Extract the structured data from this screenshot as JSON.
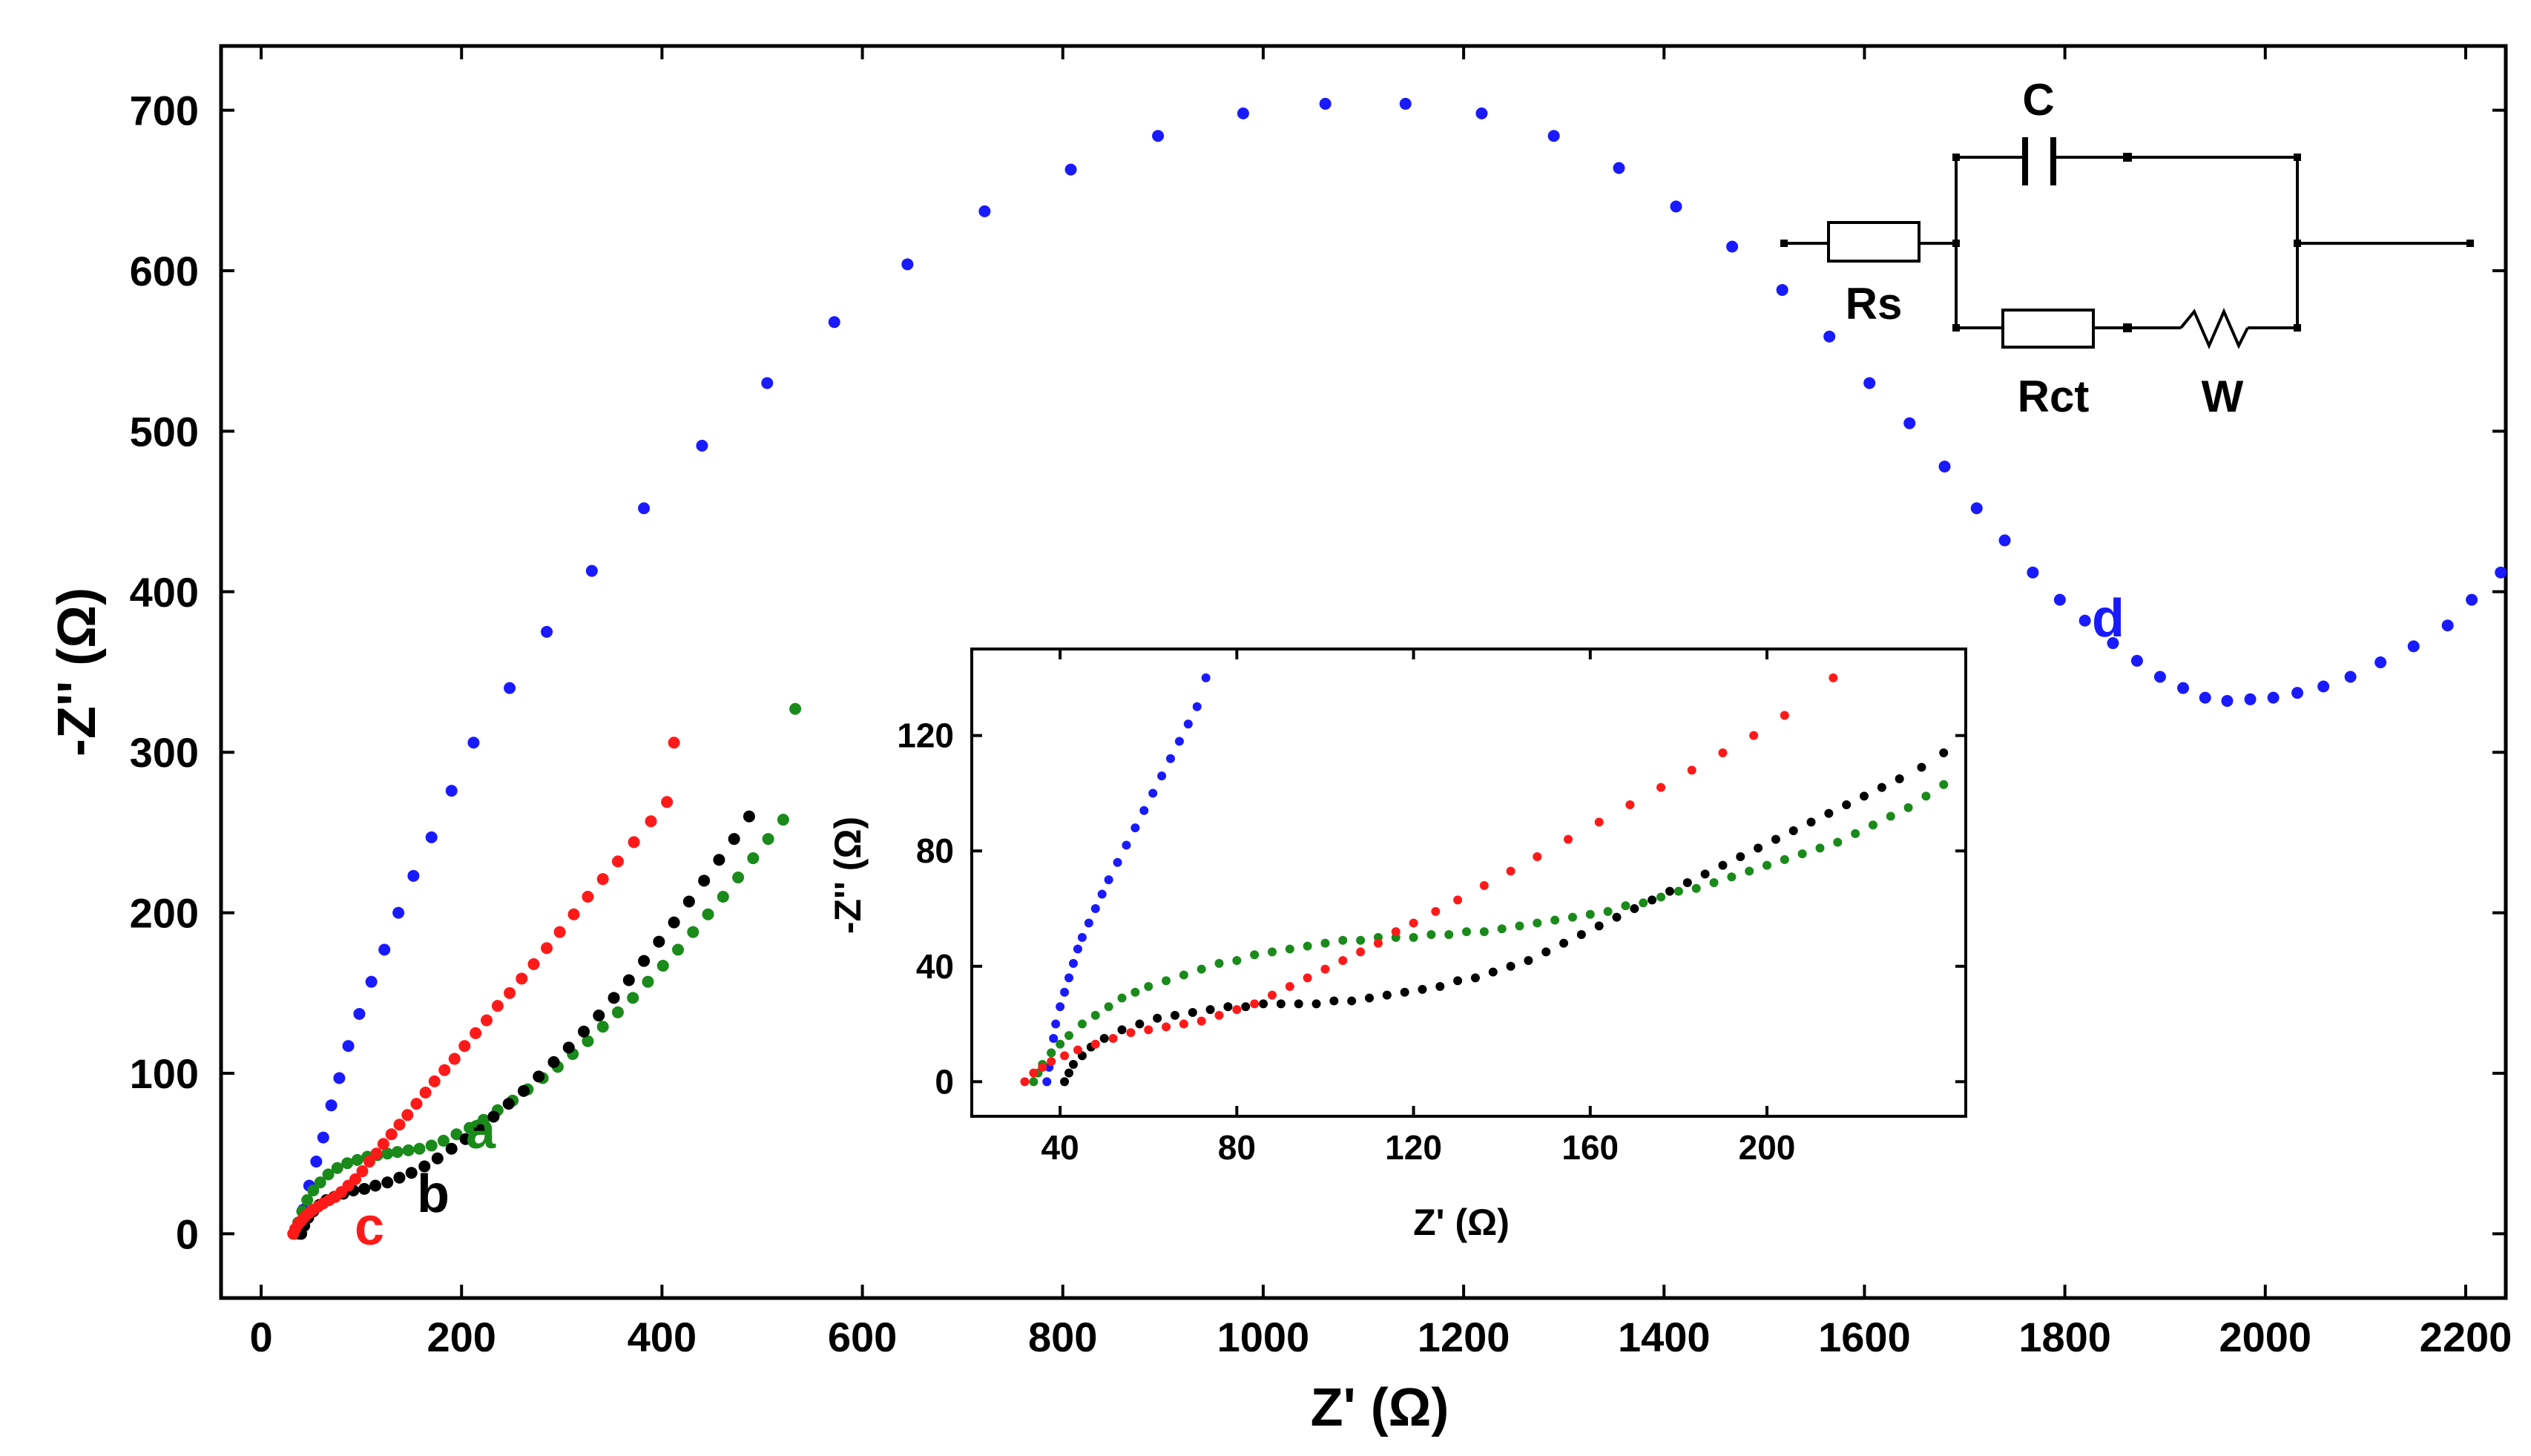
{
  "chart_data": {
    "type": "scatter",
    "title": "",
    "xlabel": "Z' (Ω)",
    "ylabel": "-Z'' (Ω)",
    "xlim": [
      -40,
      2240
    ],
    "ylim": [
      -40,
      740
    ],
    "xticks": [
      0,
      200,
      400,
      600,
      800,
      1000,
      1200,
      1400,
      1600,
      1800,
      2000,
      2200
    ],
    "yticks": [
      0,
      100,
      200,
      300,
      400,
      500,
      600,
      700
    ],
    "grid": false,
    "series": [
      {
        "name": "d",
        "color": "#1a1aff",
        "x": [
          38,
          42,
          48,
          55,
          62,
          70,
          78,
          87,
          98,
          110,
          123,
          137,
          152,
          170,
          190,
          212,
          248,
          285,
          330,
          382,
          440,
          505,
          572,
          645,
          722,
          808,
          895,
          980,
          1062,
          1142,
          1218,
          1290,
          1355,
          1412,
          1468,
          1518,
          1565,
          1605,
          1645,
          1680,
          1712,
          1740,
          1768,
          1795,
          1820,
          1848,
          1872,
          1895,
          1918,
          1940,
          1962,
          1985,
          2008,
          2032,
          2058,
          2085,
          2115,
          2148,
          2182,
          2206,
          2235
        ],
        "y": [
          0,
          15,
          30,
          45,
          60,
          80,
          97,
          117,
          137,
          157,
          177,
          200,
          223,
          247,
          276,
          306,
          340,
          375,
          413,
          452,
          491,
          530,
          568,
          604,
          637,
          663,
          684,
          698,
          704,
          704,
          698,
          684,
          664,
          640,
          615,
          588,
          559,
          530,
          505,
          478,
          452,
          432,
          412,
          395,
          382,
          368,
          357,
          347,
          340,
          334,
          332,
          333,
          334,
          337,
          341,
          347,
          356,
          366,
          379,
          395,
          412
        ]
      },
      {
        "name": "c",
        "color": "#ff1a1a",
        "x": [
          32,
          34,
          37,
          40,
          44,
          48,
          52,
          57,
          62,
          68,
          74,
          80,
          87,
          94,
          101,
          108,
          115,
          122,
          130,
          138,
          146,
          155,
          164,
          173,
          183,
          193,
          203,
          214,
          225,
          236,
          248,
          260,
          272,
          285,
          298,
          312,
          326,
          341,
          356,
          372,
          389,
          405,
          412
        ],
        "y": [
          0,
          3,
          6,
          8,
          11,
          13,
          15,
          17,
          19,
          21,
          23,
          26,
          30,
          34,
          39,
          45,
          50,
          56,
          62,
          68,
          74,
          81,
          88,
          95,
          102,
          109,
          117,
          125,
          133,
          142,
          150,
          159,
          168,
          178,
          188,
          199,
          210,
          221,
          232,
          244,
          257,
          269,
          306
        ]
      },
      {
        "name": "b",
        "color": "#000000",
        "x": [
          40,
          43,
          47,
          52,
          58,
          65,
          73,
          82,
          92,
          103,
          114,
          126,
          138,
          150,
          163,
          176,
          190,
          204,
          218,
          232,
          247,
          262,
          277,
          292,
          307,
          322,
          337,
          352,
          367,
          382,
          397,
          412,
          427,
          442,
          457,
          472,
          487
        ],
        "y": [
          0,
          5,
          10,
          14,
          18,
          21,
          23,
          25,
          27,
          28,
          30,
          32,
          35,
          38,
          42,
          47,
          53,
          59,
          66,
          73,
          81,
          89,
          98,
          107,
          116,
          126,
          136,
          147,
          158,
          170,
          182,
          194,
          207,
          220,
          233,
          246,
          260
        ]
      },
      {
        "name": "a",
        "color": "#1a8a1a",
        "x": [
          34,
          37,
          41,
          46,
          52,
          59,
          67,
          76,
          86,
          96,
          106,
          116,
          126,
          136,
          147,
          158,
          170,
          182,
          195,
          208,
          222,
          236,
          251,
          266,
          281,
          296,
          311,
          326,
          341,
          356,
          371,
          386,
          401,
          416,
          431,
          446,
          461,
          476,
          491,
          506,
          521,
          533
        ],
        "y": [
          0,
          7,
          14,
          21,
          27,
          32,
          37,
          41,
          44,
          46,
          48,
          49,
          50,
          51,
          52,
          53,
          55,
          58,
          62,
          66,
          71,
          77,
          83,
          90,
          97,
          104,
          112,
          120,
          129,
          138,
          147,
          157,
          167,
          177,
          188,
          199,
          210,
          222,
          234,
          246,
          258,
          327
        ]
      }
    ],
    "annotations": [
      {
        "text": "d",
        "series": "d"
      },
      {
        "text": "a",
        "series": "a"
      },
      {
        "text": "b",
        "series": "b"
      },
      {
        "text": "c",
        "series": "c"
      }
    ],
    "inset": {
      "xlabel": "Z' (Ω)",
      "ylabel": "-Z'' (Ω)",
      "xlim": [
        20,
        245
      ],
      "ylim": [
        -12,
        150
      ],
      "xticks": [
        40,
        80,
        120,
        160,
        200
      ],
      "yticks": [
        0,
        40,
        80,
        120
      ],
      "series": [
        {
          "name": "d",
          "color": "#1a1aff",
          "x": [
            37,
            37.5,
            38,
            38.5,
            39,
            40,
            41,
            42,
            43,
            44,
            45,
            46.5,
            48,
            49.5,
            51,
            53,
            55,
            57,
            59,
            61,
            63,
            65,
            67,
            69,
            71,
            73
          ],
          "y": [
            0,
            5,
            10,
            15,
            20,
            26,
            31,
            36,
            41,
            46,
            50,
            55,
            60,
            65,
            70,
            76,
            82,
            88,
            94,
            100,
            106,
            112,
            118,
            124,
            130,
            140
          ]
        },
        {
          "name": "c",
          "color": "#ff1a1a",
          "x": [
            32,
            34,
            36,
            38,
            41,
            44,
            48,
            52,
            56,
            60,
            64,
            68,
            72,
            76,
            80,
            84,
            88,
            92,
            96,
            100,
            104,
            108,
            112,
            116,
            120,
            125,
            130,
            136,
            142,
            148,
            155,
            162,
            169,
            176,
            183,
            190,
            197,
            204,
            215
          ],
          "y": [
            0,
            3,
            5,
            7,
            9,
            11,
            13,
            15,
            17,
            18,
            19,
            20,
            21,
            23,
            25,
            27,
            30,
            33,
            36,
            39,
            42,
            45,
            48,
            52,
            55,
            59,
            63,
            68,
            73,
            78,
            84,
            90,
            96,
            102,
            108,
            114,
            120,
            127,
            140
          ]
        },
        {
          "name": "b",
          "color": "#000000",
          "x": [
            41,
            42,
            43,
            45,
            47,
            50,
            54,
            58,
            62,
            66,
            70,
            74,
            78,
            82,
            86,
            90,
            94,
            98,
            102,
            106,
            110,
            114,
            118,
            122,
            126,
            130,
            134,
            138,
            142,
            146,
            150,
            154,
            158,
            162,
            166,
            170,
            174,
            178,
            182,
            186,
            190,
            194,
            198,
            202,
            206,
            210,
            214,
            218,
            222,
            226,
            230,
            235,
            240
          ],
          "y": [
            0,
            3,
            6,
            9,
            12,
            15,
            18,
            20,
            22,
            23,
            24,
            25,
            26,
            26,
            27,
            27,
            27,
            27,
            28,
            28,
            29,
            30,
            31,
            32,
            33,
            35,
            36,
            38,
            40,
            42,
            45,
            48,
            51,
            54,
            57,
            60,
            63,
            66,
            69,
            72,
            75,
            78,
            81,
            84,
            87,
            90,
            93,
            96,
            99,
            102,
            105,
            109,
            114
          ]
        },
        {
          "name": "a",
          "color": "#1a8a1a",
          "x": [
            34,
            35,
            36,
            38,
            40,
            42,
            45,
            48,
            51,
            54,
            57,
            60,
            64,
            68,
            72,
            76,
            80,
            84,
            88,
            92,
            96,
            100,
            104,
            108,
            112,
            116,
            120,
            124,
            128,
            132,
            136,
            140,
            144,
            148,
            152,
            156,
            160,
            164,
            168,
            172,
            176,
            180,
            184,
            188,
            192,
            196,
            200,
            204,
            208,
            212,
            216,
            220,
            224,
            228,
            232,
            236,
            240
          ],
          "y": [
            0,
            3,
            6,
            10,
            13,
            16,
            20,
            23,
            26,
            29,
            31,
            33,
            35,
            37,
            39,
            41,
            42,
            44,
            45,
            46,
            47,
            48,
            49,
            49,
            50,
            50,
            50,
            51,
            51,
            52,
            52,
            53,
            54,
            55,
            56,
            57,
            58,
            59,
            61,
            62,
            64,
            66,
            67,
            69,
            71,
            73,
            75,
            77,
            79,
            81,
            83,
            86,
            89,
            92,
            95,
            99,
            103
          ]
        }
      ]
    },
    "circuit": {
      "labels": {
        "c": "C",
        "rs": "Rs",
        "rct": "Rct",
        "w": "W"
      }
    }
  }
}
